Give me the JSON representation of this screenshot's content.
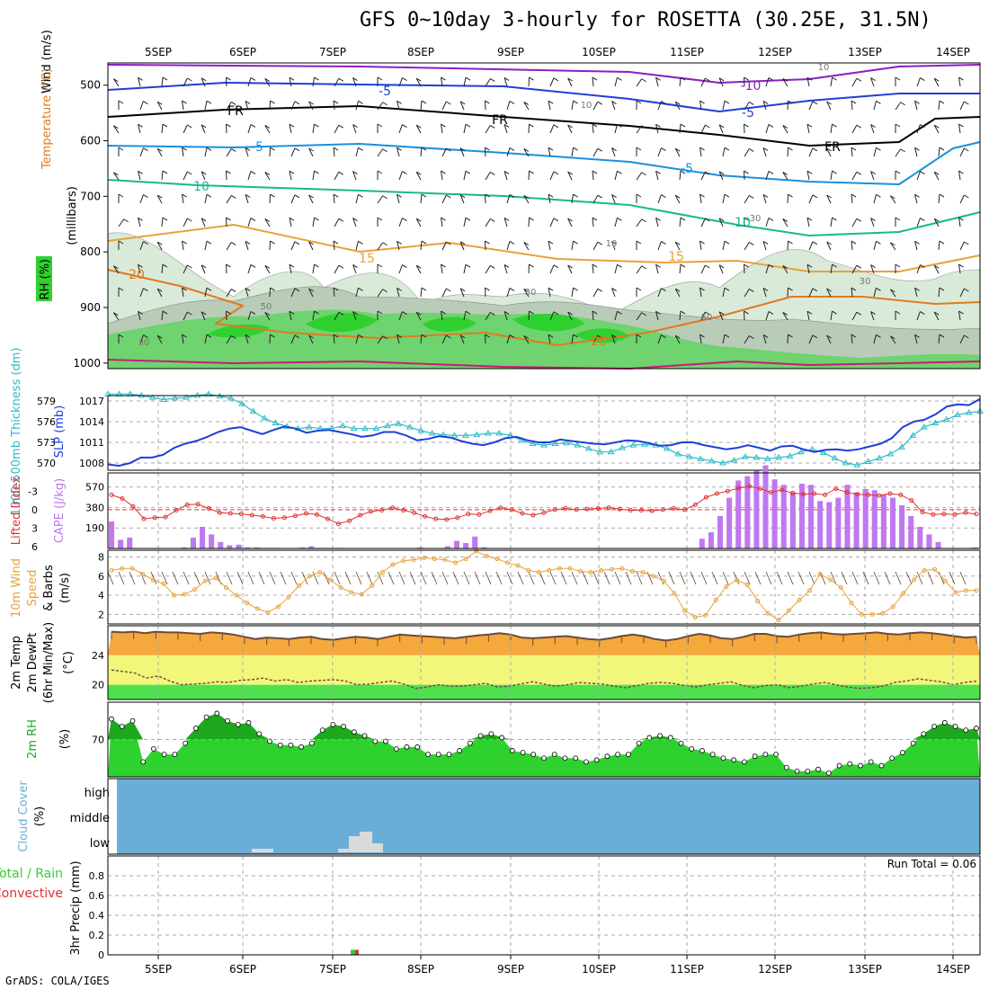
{
  "title": "GFS 0~10day 3-hourly for ROSETTA (30.25E, 31.5N)",
  "footer": "GrADS: COLA/IGES",
  "colors": {
    "rh_green": "#2fd12f",
    "rh_light": "#d9ead9",
    "temp_blue": "#1e3fd8",
    "temp_purple": "#8b1fc4",
    "temp_cyan": "#1a90e0",
    "temp_teal": "#17b890",
    "temp_orange": "#e8a13a",
    "temp_dark_orange": "#e07a20",
    "temp_magenta": "#d0187a",
    "thickness": "#2cbcc8",
    "slp": "#1e3fd8",
    "cape": "#c078f0",
    "lifted": "#e03030",
    "wind10": "#e8a13a",
    "temp_band": "#f5a83c",
    "yellow_band": "#f2f77a",
    "green_band": "#4fe04f",
    "cloud": "#6aaed8",
    "rain": "#2fd12f",
    "convective": "#e03030"
  },
  "chart_data": [
    {
      "type": "heatmap",
      "id": "upper_air",
      "ylabel": "(millibars)",
      "legend_labels": [
        "Wind (m/s)",
        "Temperature (°C)",
        "RH (%)"
      ],
      "x_ticks": [
        "5SEP",
        "6SEP",
        "7SEP",
        "8SEP",
        "9SEP",
        "10SEP",
        "11SEP",
        "12SEP",
        "13SEP",
        "14SEP"
      ],
      "y_ticks": [
        500,
        600,
        700,
        800,
        900,
        1000
      ],
      "ylim": [
        460,
        1010
      ],
      "contour_labels": [
        "-10",
        "-5",
        "-5",
        "FR",
        "FR",
        "FR",
        "-5",
        "-5",
        "10",
        "10",
        "15",
        "15",
        "20",
        "20",
        "10",
        "10",
        "30",
        "30",
        "30",
        "50",
        "50",
        "30",
        "10"
      ]
    },
    {
      "type": "line",
      "id": "slp_thickness",
      "ylabel_left": "1000-500mb Thickness (dm)",
      "ylabel_right": "SLP (mb)",
      "thickness_ticks": [
        570,
        573,
        576,
        579
      ],
      "slp_ticks": [
        1008,
        1011,
        1014,
        1017
      ],
      "series": [
        {
          "name": "Thickness",
          "values": [
            580,
            580,
            580,
            579.8,
            579.5,
            579.2,
            579.4,
            579.5,
            579.8,
            580,
            579.7,
            579.4,
            578.6,
            577.5,
            576.5,
            575.8,
            575.3,
            575.0,
            575.2,
            575.0,
            575.0,
            575.4,
            575.0,
            575.0,
            575.0,
            575.4,
            575.7,
            575.2,
            574.7,
            574.3,
            574.1,
            574.0,
            574.0,
            574.1,
            574.3,
            574.3,
            574.0,
            573.3,
            572.8,
            572.6,
            572.8,
            572.9,
            572.6,
            572.1,
            571.6,
            571.6,
            572.2,
            572.6,
            572.7,
            572.6,
            572.1,
            571.3,
            570.9,
            570.6,
            570.3,
            570.0,
            570.4,
            570.9,
            570.8,
            570.6,
            570.8,
            571.0,
            571.6,
            572.0,
            571.5,
            570.7,
            570.0,
            569.7,
            570.2,
            570.7,
            571.3,
            572.3,
            574.0,
            575.2,
            575.8,
            576.3,
            577.0,
            577.3,
            577.5
          ]
        },
        {
          "name": "SLP",
          "values": [
            1007.8,
            1007.6,
            1008.0,
            1008.8,
            1008.8,
            1009.2,
            1010.2,
            1010.8,
            1011.2,
            1011.8,
            1012.5,
            1013.0,
            1013.2,
            1012.7,
            1012.2,
            1012.8,
            1013.3,
            1013.0,
            1012.4,
            1012.7,
            1012.8,
            1012.5,
            1012.2,
            1011.8,
            1012.0,
            1012.5,
            1012.5,
            1012.0,
            1011.3,
            1011.5,
            1011.9,
            1011.7,
            1011.2,
            1010.8,
            1010.6,
            1011.0,
            1011.6,
            1011.8,
            1011.3,
            1011.0,
            1011.0,
            1011.4,
            1011.2,
            1011.0,
            1010.8,
            1010.7,
            1011.0,
            1011.3,
            1011.2,
            1010.9,
            1010.5,
            1010.6,
            1011.0,
            1011.0,
            1010.6,
            1010.3,
            1010.0,
            1010.2,
            1010.6,
            1010.2,
            1009.8,
            1010.4,
            1010.5,
            1010.0,
            1009.6,
            1009.9,
            1010.0,
            1009.8,
            1010.0,
            1010.4,
            1010.8,
            1011.6,
            1013.2,
            1014.0,
            1014.3,
            1015.1,
            1016.2,
            1016.5,
            1016.4,
            1017.3
          ]
        }
      ]
    },
    {
      "type": "bar",
      "id": "cape_li",
      "ylabel_left": "Lifted Index",
      "ylabel_right": "CAPE (J/kg)",
      "li_ticks": [
        -3,
        0,
        3,
        6
      ],
      "cape_ticks": [
        190,
        380,
        570
      ],
      "series": [
        {
          "name": "CAPE",
          "values": [
            250,
            80,
            100,
            0,
            0,
            0,
            0,
            0,
            10,
            100,
            200,
            130,
            60,
            30,
            35,
            10,
            10,
            5,
            5,
            0,
            0,
            10,
            20,
            5,
            5,
            5,
            0,
            0,
            0,
            0,
            0,
            0,
            0,
            0,
            10,
            0,
            0,
            20,
            70,
            50,
            110,
            10,
            0,
            0,
            0,
            0,
            0,
            0,
            0,
            0,
            0,
            0,
            0,
            0,
            0,
            0,
            0,
            0,
            0,
            0,
            0,
            0,
            0,
            0,
            0,
            90,
            150,
            300,
            470,
            630,
            670,
            720,
            770,
            640,
            590,
            520,
            600,
            590,
            440,
            430,
            470,
            590,
            520,
            550,
            540,
            500,
            470,
            400,
            300,
            200,
            130,
            60,
            0,
            0,
            0,
            10
          ]
        },
        {
          "name": "Lifted Index",
          "values": [
            -2.4,
            -1.8,
            -0.5,
            1.5,
            1.3,
            1.2,
            0.1,
            -0.8,
            -0.9,
            -0.2,
            0.5,
            0.6,
            0.7,
            0.9,
            1.1,
            1.4,
            1.3,
            1.0,
            0.6,
            0.8,
            1.5,
            2.3,
            1.8,
            0.9,
            0.3,
            0.1,
            -0.3,
            0.1,
            0.5,
            1.1,
            1.5,
            1.6,
            1.3,
            0.7,
            0.8,
            0.2,
            -0.3,
            0.0,
            0.6,
            0.9,
            0.5,
            0.0,
            -0.2,
            0.0,
            -0.1,
            -0.2,
            -0.3,
            -0.1,
            0.1,
            0.1,
            0.2,
            0.0,
            -0.2,
            0.0,
            -0.8,
            -2.0,
            -2.6,
            -3.0,
            -3.5,
            -3.8,
            -3.4,
            -2.8,
            -3.2,
            -2.7,
            -2.5,
            -2.6,
            -2.4,
            -3.4,
            -2.8,
            -2.5,
            -2.4,
            -2.3,
            -2.6,
            -2.4,
            -1.5,
            0.4,
            0.8,
            0.7,
            0.8,
            0.5,
            0.7
          ]
        }
      ]
    },
    {
      "type": "line",
      "id": "wind10",
      "ylabel": "10m Wind Speed & Barbs (m/s)",
      "y_ticks": [
        2,
        4,
        6,
        8
      ],
      "ylim": [
        1,
        8.7
      ],
      "series": [
        {
          "name": "Speed",
          "values": [
            6.6,
            6.8,
            6.8,
            6.2,
            5.6,
            5.2,
            4.0,
            4.1,
            4.6,
            5.5,
            5.8,
            4.8,
            4.0,
            3.2,
            2.6,
            2.2,
            2.8,
            3.8,
            5.0,
            6.0,
            6.4,
            5.6,
            4.8,
            4.3,
            4.1,
            5.0,
            6.4,
            7.2,
            7.6,
            7.7,
            7.9,
            7.8,
            7.7,
            7.4,
            7.8,
            8.6,
            8.1,
            7.8,
            7.4,
            7.1,
            6.6,
            6.4,
            6.6,
            6.8,
            6.8,
            6.5,
            6.4,
            6.6,
            6.7,
            6.8,
            6.5,
            6.4,
            6.0,
            5.5,
            4.2,
            2.4,
            1.7,
            1.9,
            3.5,
            4.9,
            5.6,
            5.1,
            3.4,
            2.1,
            1.4,
            2.4,
            3.5,
            4.5,
            6.2,
            5.6,
            4.8,
            3.2,
            2.0,
            2.0,
            2.1,
            2.8,
            4.2,
            5.6,
            6.6,
            6.7,
            5.5,
            4.3,
            4.5,
            4.5
          ]
        }
      ]
    },
    {
      "type": "area",
      "id": "temp2m",
      "ylabel": "2m Temp / 2m DewPt (6hr Min/Max) (°C)",
      "y_ticks": [
        20,
        24
      ],
      "ylim": [
        18,
        28
      ],
      "series": [
        {
          "name": "Temp",
          "values": [
            27.2,
            27.1,
            27.2,
            27.0,
            27.2,
            27.1,
            27.1,
            27.0,
            26.9,
            27.1,
            27.0,
            26.8,
            26.5,
            26.2,
            26.4,
            26.3,
            26.2,
            26.4,
            26.5,
            26.2,
            26.1,
            26.3,
            26.5,
            26.4,
            26.2,
            26.5,
            26.8,
            26.7,
            26.6,
            26.5,
            26.4,
            26.3,
            26.5,
            26.7,
            26.8,
            27.0,
            26.8,
            26.4,
            26.3,
            26.4,
            26.5,
            26.6,
            26.4,
            26.2,
            26.1,
            26.3,
            26.6,
            26.8,
            26.6,
            26.2,
            26.0,
            26.2,
            26.6,
            26.9,
            26.7,
            26.3,
            26.2,
            26.5,
            26.9,
            26.9,
            26.6,
            26.5,
            26.8,
            27.0,
            27.1,
            26.9,
            26.8,
            26.9,
            27.0,
            27.1,
            26.9,
            26.8,
            27.0,
            27.1,
            27.0,
            26.8,
            26.6,
            26.4,
            26.5
          ]
        },
        {
          "name": "DewPt",
          "values": [
            22.0,
            21.8,
            21.6,
            20.9,
            21.2,
            20.5,
            20.0,
            20.1,
            20.2,
            20.4,
            20.3,
            20.6,
            20.7,
            20.9,
            20.5,
            20.7,
            20.3,
            20.5,
            20.6,
            20.7,
            20.5,
            20.0,
            20.1,
            20.3,
            20.5,
            20.1,
            19.5,
            19.7,
            20.0,
            19.8,
            19.8,
            20.0,
            20.2,
            19.7,
            19.8,
            20.1,
            20.4,
            20.1,
            19.8,
            20.0,
            20.3,
            20.2,
            20.1,
            19.8,
            19.6,
            19.9,
            20.2,
            20.3,
            20.2,
            19.9,
            19.7,
            20.0,
            20.2,
            20.4,
            19.9,
            19.6,
            19.9,
            20.0,
            19.6,
            19.8,
            20.1,
            20.3,
            20.0,
            19.7,
            19.5,
            19.6,
            19.8,
            20.3,
            20.5,
            20.8,
            20.6,
            20.4,
            20.0,
            20.3,
            20.5
          ]
        }
      ]
    },
    {
      "type": "area",
      "id": "rh2m",
      "ylabel": "2m RH (%)",
      "y_ticks": [
        70
      ],
      "ylim": [
        50,
        90
      ],
      "series": [
        {
          "name": "RH",
          "values": [
            81,
            77,
            80,
            58,
            65,
            62,
            62,
            68,
            76,
            82,
            84,
            80,
            78,
            79,
            73,
            69,
            67,
            67,
            66,
            68,
            75,
            78,
            77,
            74,
            72,
            69,
            69,
            65,
            66,
            66,
            62,
            62,
            62,
            64,
            68,
            72,
            73,
            71,
            64,
            63,
            62,
            60,
            62,
            60,
            60,
            58,
            59,
            61,
            62,
            62,
            68,
            71,
            72,
            71,
            68,
            65,
            64,
            62,
            60,
            59,
            58,
            61,
            62,
            62,
            55,
            53,
            53,
            54,
            52,
            56,
            57,
            56,
            58,
            56,
            60,
            63,
            68,
            73,
            77,
            79,
            77,
            75,
            76
          ]
        }
      ]
    },
    {
      "type": "bar",
      "id": "cloud",
      "ylabel": "Cloud Cover (%)",
      "y_ticks": [
        "high",
        "middle",
        "low"
      ],
      "series": [
        {
          "name": "low"
        }
      ]
    },
    {
      "type": "bar",
      "id": "precip",
      "ylabel": "3hr Precip (mm)",
      "legend_labels": [
        "Total / Rain",
        "Convective"
      ],
      "run_total": "Run Total = 0.06",
      "y_ticks": [
        "0",
        "0.2",
        "0.4",
        "0.6",
        "0.8"
      ],
      "ylim": [
        0,
        1
      ],
      "x_ticks": [
        "5SEP",
        "6SEP",
        "7SEP",
        "8SEP",
        "9SEP",
        "10SEP",
        "11SEP",
        "12SEP",
        "13SEP",
        "14SEP"
      ],
      "series": [
        {
          "name": "Total",
          "values": [
            0.06
          ]
        },
        {
          "name": "Convective",
          "values": [
            0.06
          ]
        }
      ]
    }
  ]
}
